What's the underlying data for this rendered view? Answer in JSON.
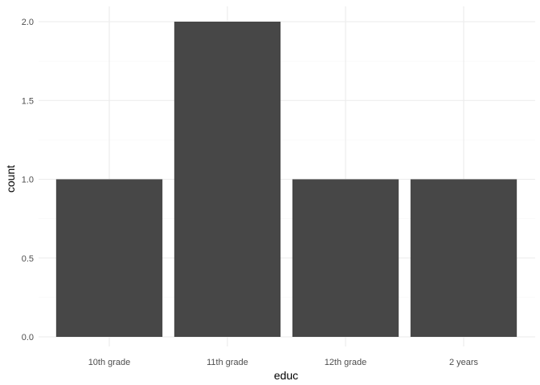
{
  "chart_data": {
    "type": "bar",
    "title": "",
    "xlabel": "educ",
    "ylabel": "count",
    "categories": [
      "10th grade",
      "11th grade",
      "12th grade",
      "2 years"
    ],
    "values": [
      1,
      2,
      1,
      1
    ],
    "ylim": [
      0,
      2.1
    ],
    "yticks": [
      0.0,
      0.5,
      1.0,
      1.5,
      2.0
    ],
    "ytick_labels": [
      "0.0",
      "0.5",
      "1.0",
      "1.5",
      "2.0"
    ],
    "grid": true,
    "legend": "none",
    "colors": {
      "bar": "#474747",
      "grid_major": "#ebebeb",
      "grid_minor": "#f4f4f4",
      "background": "#ffffff"
    }
  }
}
